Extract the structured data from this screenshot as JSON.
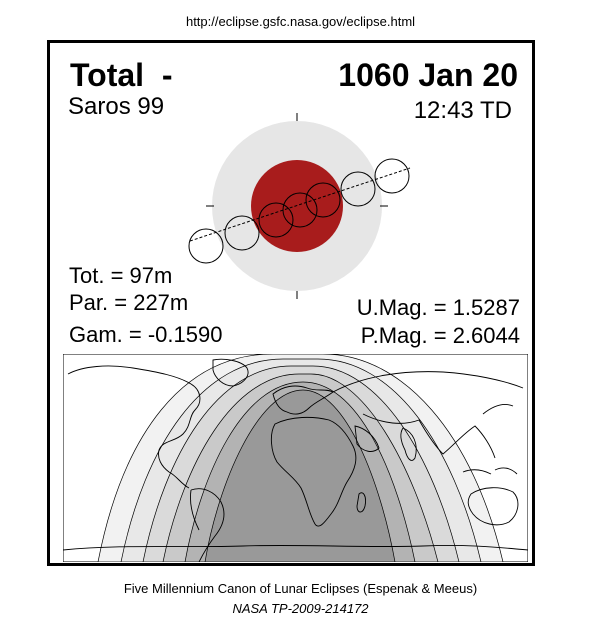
{
  "source_url": "http://eclipse.gsfc.nasa.gov/eclipse.html",
  "eclipse": {
    "type": "Total",
    "type_suffix": "-",
    "date": "1060 Jan 20",
    "saros": "Saros  99",
    "time": "12:43 TD",
    "total_duration": "Tot. =  97m",
    "partial_duration": "Par. = 227m",
    "gamma": "Gam. = -0.1590",
    "umbral_magnitude": "U.Mag. = 1.5287",
    "penumbral_magnitude": "P.Mag. = 2.6044"
  },
  "colors": {
    "umbra": "#a81c1c",
    "penumbra": "#e6e6e6",
    "map_umbra_zone": "#999999",
    "map_zone_1": "#b3b3b3",
    "map_zone_2": "#c9c9c9",
    "map_zone_3": "#dadada",
    "map_zone_4": "#e8e8e8",
    "map_zone_5": "#f2f2f2"
  },
  "footer": {
    "line1": "Five Millennium Canon of Lunar Eclipses (Espenak & Meeus)",
    "line2": "NASA TP-2009-214172"
  }
}
